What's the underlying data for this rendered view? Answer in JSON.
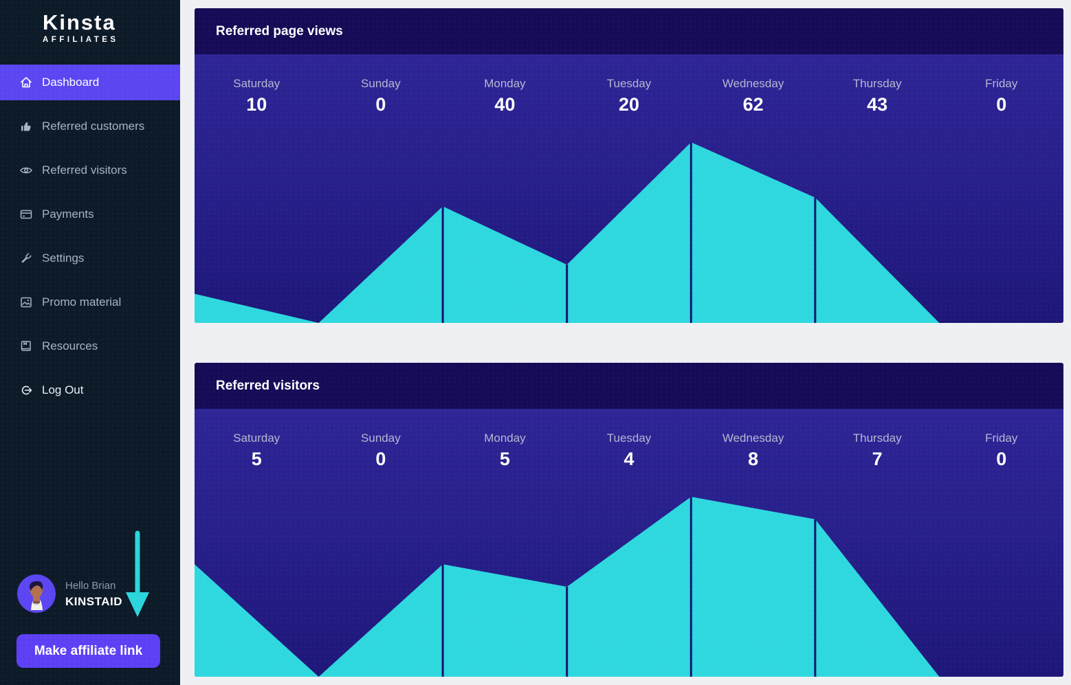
{
  "sidebar": {
    "logo": {
      "brand": "Kinsta",
      "sub": "AFFILIATES"
    },
    "items": [
      {
        "label": "Dashboard",
        "icon": "home-icon",
        "active": true
      },
      {
        "label": "Referred customers",
        "icon": "thumbs-up-icon",
        "active": false
      },
      {
        "label": "Referred visitors",
        "icon": "eye-icon",
        "active": false
      },
      {
        "label": "Payments",
        "icon": "credit-card-icon",
        "active": false
      },
      {
        "label": "Settings",
        "icon": "wrench-icon",
        "active": false
      },
      {
        "label": "Promo material",
        "icon": "image-icon",
        "active": false
      },
      {
        "label": "Resources",
        "icon": "book-icon",
        "active": false
      },
      {
        "label": "Log Out",
        "icon": "logout-icon",
        "active": false
      }
    ],
    "user": {
      "greeting": "Hello Brian",
      "username": "KINSTAID"
    },
    "cta_label": "Make affiliate link"
  },
  "colors": {
    "sidebar_bg": "#0d1b29",
    "accent_purple": "#5b46f2",
    "button_purple": "#5d40f4",
    "card_header_navy": "#150b56",
    "chart_bg_top": "#2e2596",
    "chart_bg_bottom": "#1e1779",
    "area_cyan": "#2ed8de",
    "marker_line_navy": "#181172",
    "page_bg": "#eef0f4"
  },
  "chart_data": [
    {
      "type": "area",
      "title": "Referred page views",
      "categories": [
        "Saturday",
        "Sunday",
        "Monday",
        "Tuesday",
        "Wednesday",
        "Thursday",
        "Friday"
      ],
      "values": [
        10,
        0,
        40,
        20,
        62,
        43,
        0
      ],
      "ylim": [
        0,
        62
      ],
      "grid": false,
      "legend": "none",
      "value_labels_shown": true
    },
    {
      "type": "area",
      "title": "Referred visitors",
      "categories": [
        "Saturday",
        "Sunday",
        "Monday",
        "Tuesday",
        "Wednesday",
        "Thursday",
        "Friday"
      ],
      "values": [
        5,
        0,
        5,
        4,
        8,
        7,
        0
      ],
      "ylim": [
        0,
        8
      ],
      "grid": false,
      "legend": "none",
      "value_labels_shown": true
    }
  ]
}
